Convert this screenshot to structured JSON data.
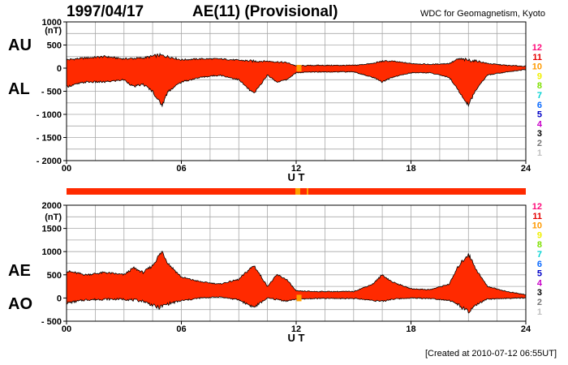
{
  "header": {
    "date": "1997/04/17",
    "index_title": "AE(11) (Provisional)",
    "source": "WDC for Geomagnetism, Kyoto",
    "footer": "[Created at 2010-07-12 06:55UT]"
  },
  "colors": {
    "trace_fill": "#ff2a00",
    "trace_line": "#000000",
    "grid": "#a8a8a8",
    "frame": "#000000",
    "bar_marker": "#ffa000",
    "station_counts": {
      "12": "#ff0a7a",
      "11": "#e60000",
      "10": "#ff9a00",
      "9": "#f0f000",
      "8": "#7ee000",
      "7": "#00d2d2",
      "6": "#0a6aff",
      "5": "#0000c8",
      "4": "#c800c8",
      "3": "#000000",
      "2": "#777777",
      "1": "#c0c0c0"
    }
  },
  "legend": {
    "counts": [
      "12",
      "11",
      "10",
      "9",
      "8",
      "7",
      "6",
      "5",
      "4",
      "3",
      "2",
      "1"
    ]
  },
  "chart_data": [
    {
      "type": "area",
      "panel": "AU/AL",
      "left_labels": [
        "AU",
        "AL"
      ],
      "unit_label": "(nT)",
      "ylim": [
        -2000,
        1000
      ],
      "yticks": [
        1000,
        500,
        0,
        -500,
        -1000,
        -1500,
        -2000
      ],
      "ytick_labels": [
        "1000",
        "500",
        "0",
        "- 500",
        "- 1000",
        "- 1500",
        "- 2000"
      ],
      "xlim": [
        0,
        24
      ],
      "xticks": [
        0,
        6,
        12,
        18,
        24
      ],
      "xtick_labels": [
        "00",
        "06",
        "12",
        "18",
        "24"
      ],
      "xlabel": "U T",
      "grid": true,
      "series": [
        {
          "name": "AU",
          "x": [
            0,
            1,
            2,
            3,
            4,
            4.8,
            5.3,
            6,
            7,
            8,
            9,
            9.8,
            10.5,
            11.5,
            12,
            13,
            14,
            15,
            16,
            16.5,
            17,
            18,
            19,
            20,
            20.5,
            21,
            21.5,
            22,
            23,
            24
          ],
          "values": [
            180,
            220,
            250,
            200,
            220,
            280,
            250,
            180,
            200,
            200,
            170,
            150,
            150,
            120,
            50,
            60,
            60,
            60,
            100,
            150,
            150,
            100,
            80,
            100,
            200,
            170,
            150,
            100,
            60,
            40
          ]
        },
        {
          "name": "AL",
          "x": [
            0,
            1,
            2,
            3,
            3.5,
            4,
            4.5,
            4.8,
            5,
            5.3,
            6,
            7,
            8,
            9,
            9.5,
            9.8,
            10.5,
            11,
            11.5,
            12,
            13,
            14,
            15,
            16,
            16.5,
            17,
            18,
            19,
            20,
            20.5,
            20.8,
            21,
            21.5,
            22,
            23,
            24
          ],
          "values": [
            -400,
            -300,
            -300,
            -250,
            -400,
            -350,
            -500,
            -700,
            -800,
            -500,
            -300,
            -200,
            -150,
            -250,
            -450,
            -550,
            -150,
            -300,
            -250,
            -100,
            -80,
            -80,
            -80,
            -200,
            -300,
            -200,
            -100,
            -100,
            -200,
            -500,
            -700,
            -780,
            -400,
            -150,
            -80,
            -30
          ]
        }
      ]
    },
    {
      "type": "area",
      "panel": "AE/AO",
      "left_labels": [
        "AE",
        "AO"
      ],
      "unit_label": "(nT)",
      "ylim": [
        -500,
        2000
      ],
      "yticks": [
        2000,
        1500,
        1000,
        500,
        0,
        -500
      ],
      "ytick_labels": [
        "2000",
        "1500",
        "1000",
        "500",
        "0",
        "- 500"
      ],
      "xlim": [
        0,
        24
      ],
      "xticks": [
        0,
        6,
        12,
        18,
        24
      ],
      "xtick_labels": [
        "00",
        "06",
        "12",
        "18",
        "24"
      ],
      "xlabel": "U T",
      "grid": true,
      "series": [
        {
          "name": "AE",
          "x": [
            0,
            1,
            2,
            3,
            3.5,
            4,
            4.5,
            4.8,
            5,
            5.3,
            6,
            7,
            8,
            9,
            9.5,
            9.8,
            10.5,
            11,
            11.5,
            12,
            13,
            14,
            15,
            16,
            16.5,
            17,
            18,
            19,
            20,
            20.5,
            20.8,
            21,
            21.5,
            22,
            23,
            24
          ],
          "values": [
            580,
            500,
            550,
            500,
            650,
            550,
            700,
            900,
            1000,
            750,
            450,
            350,
            300,
            400,
            600,
            700,
            250,
            500,
            400,
            150,
            140,
            140,
            140,
            300,
            500,
            350,
            200,
            180,
            300,
            700,
            850,
            950,
            550,
            250,
            140,
            70
          ]
        },
        {
          "name": "AO",
          "x": [
            0,
            1,
            2,
            3,
            4,
            4.8,
            5.3,
            6,
            7,
            8,
            9,
            9.8,
            10.5,
            11.5,
            12,
            13,
            14,
            15,
            16,
            16.5,
            17,
            18,
            19,
            20,
            20.5,
            21,
            21.5,
            22,
            23,
            24
          ],
          "values": [
            -110,
            -40,
            -25,
            -25,
            -65,
            -210,
            -125,
            -60,
            0,
            25,
            -40,
            -200,
            0,
            -65,
            -25,
            -10,
            -10,
            -10,
            -50,
            -75,
            -25,
            0,
            -10,
            -50,
            -150,
            -305,
            -125,
            -25,
            -10,
            5
          ]
        }
      ]
    }
  ]
}
